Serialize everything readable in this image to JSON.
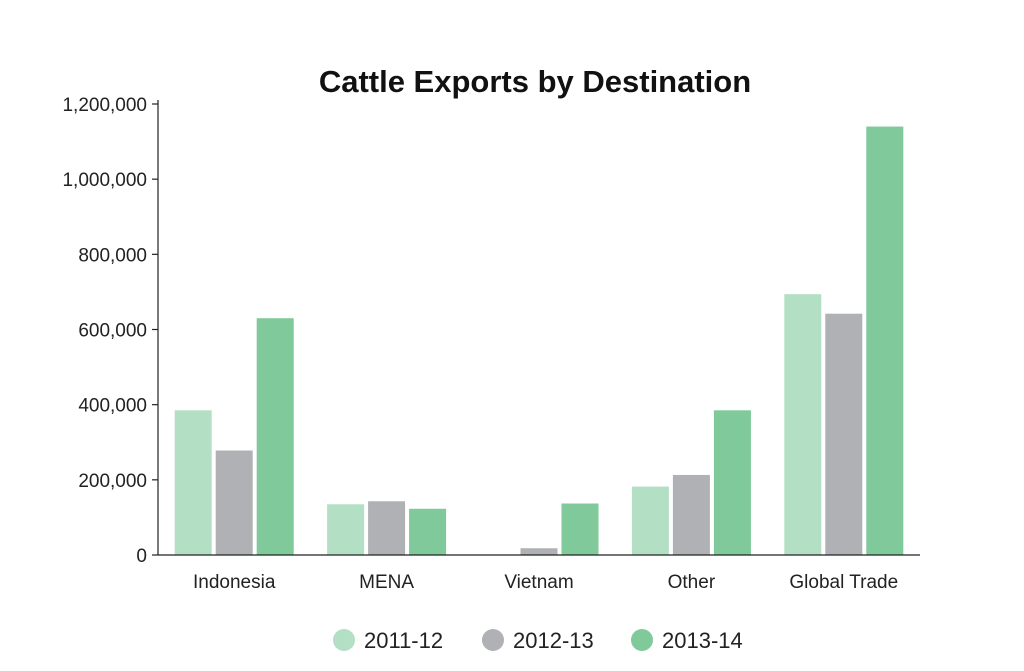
{
  "chart_data": {
    "type": "bar",
    "title": "Cattle Exports by Destination",
    "xlabel": "",
    "ylabel": "",
    "ylim": [
      0,
      1200000
    ],
    "yticks": [
      0,
      200000,
      400000,
      600000,
      800000,
      1000000,
      1200000
    ],
    "ytick_labels": [
      "0",
      "200,000",
      "400,000",
      "600,000",
      "800,000",
      "1,000,000",
      "1,200,000"
    ],
    "categories": [
      "Indonesia",
      "MENA",
      "Vietnam",
      "Other",
      "Global Trade"
    ],
    "series": [
      {
        "name": "2011-12",
        "color": "#b3e0c4",
        "values": [
          385000,
          135000,
          0,
          182000,
          694000
        ]
      },
      {
        "name": "2012-13",
        "color": "#b0b1b4",
        "values": [
          278000,
          143000,
          18000,
          213000,
          642000
        ]
      },
      {
        "name": "2013-14",
        "color": "#7fc99a",
        "values": [
          630000,
          123000,
          137000,
          385000,
          1140000
        ]
      }
    ],
    "grid": false,
    "legend": "bottom-center"
  }
}
